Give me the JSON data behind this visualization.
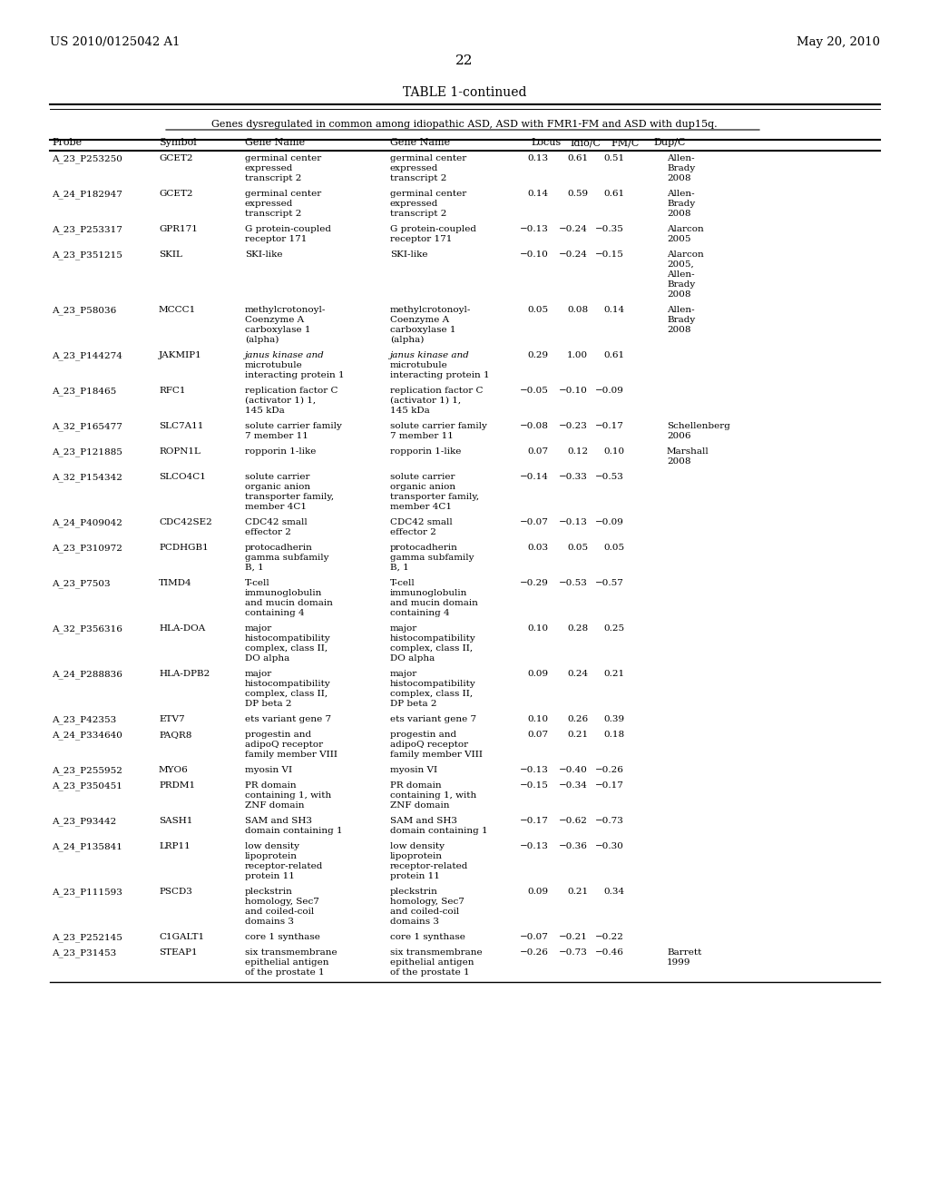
{
  "page_left": "US 2010/0125042 A1",
  "page_right": "May 20, 2010",
  "page_number": "22",
  "table_title": "TABLE 1-continued",
  "subtitle": "Genes dysregulated in common among idiopathic ASD, ASD with FMR1-FM and ASD with dup15q.",
  "col_headers": [
    "Probe",
    "Symbol",
    "Gene Name",
    "Gene Name",
    "Locus",
    "Idio/C",
    "FM/C",
    "Dup/C"
  ],
  "rows": [
    {
      "probe": "A_23_P253250",
      "symbol": "GCET2",
      "gene_name1": "germinal center\nexpressed\ntranscript 2",
      "gene_name2": "germinal center\nexpressed\ntranscript 2",
      "locus": "0.13",
      "idio": "0.61",
      "fmc": "0.51",
      "dupc": "Allen-\nBrady\n2008"
    },
    {
      "probe": "A_24_P182947",
      "symbol": "GCET2",
      "gene_name1": "germinal center\nexpressed\ntranscript 2",
      "gene_name2": "germinal center\nexpressed\ntranscript 2",
      "locus": "0.14",
      "idio": "0.59",
      "fmc": "0.61",
      "dupc": "Allen-\nBrady\n2008"
    },
    {
      "probe": "A_23_P253317",
      "symbol": "GPR171",
      "gene_name1": "G protein-coupled\nreceptor 171",
      "gene_name2": "G protein-coupled\nreceptor 171",
      "locus": "−0.13",
      "idio": "−0.24",
      "fmc": "−0.35",
      "dupc": "Alarcon\n2005"
    },
    {
      "probe": "A_23_P351215",
      "symbol": "SKIL",
      "gene_name1": "SKI-like",
      "gene_name2": "SKI-like",
      "locus": "−0.10",
      "idio": "−0.24",
      "fmc": "−0.15",
      "dupc": "Alarcon\n2005,\nAllen-\nBrady\n2008"
    },
    {
      "probe": "A_23_P58036",
      "symbol": "MCCC1",
      "gene_name1": "methylcrotonoyl-\nCoenzyme A\ncarboxylase 1\n(alpha)",
      "gene_name2": "methylcrotonoyl-\nCoenzyme A\ncarboxylase 1\n(alpha)",
      "locus": "0.05",
      "idio": "0.08",
      "fmc": "0.14",
      "dupc": "Allen-\nBrady\n2008"
    },
    {
      "probe": "A_23_P144274",
      "symbol": "JAKMIP1",
      "gene_name1": "janus kinase and\nmicrotubule\ninteracting protein 1",
      "gene_name2": "janus kinase and\nmicrotubule\ninteracting protein 1",
      "locus": "0.29",
      "idio": "1.00",
      "fmc": "0.61",
      "dupc": ""
    },
    {
      "probe": "A_23_P18465",
      "symbol": "RFC1",
      "gene_name1": "replication factor C\n(activator 1) 1,\n145 kDa",
      "gene_name2": "replication factor C\n(activator 1) 1,\n145 kDa",
      "locus": "−0.05",
      "idio": "−0.10",
      "fmc": "−0.09",
      "dupc": ""
    },
    {
      "probe": "A_32_P165477",
      "symbol": "SLC7A11",
      "gene_name1": "solute carrier family\n7 member 11",
      "gene_name2": "solute carrier family\n7 member 11",
      "locus": "−0.08",
      "idio": "−0.23",
      "fmc": "−0.17",
      "dupc": "Schellenberg\n2006"
    },
    {
      "probe": "A_23_P121885",
      "symbol": "ROPN1L",
      "gene_name1": "ropporin 1-like",
      "gene_name2": "ropporin 1-like",
      "locus": "0.07",
      "idio": "0.12",
      "fmc": "0.10",
      "dupc": "Marshall\n2008"
    },
    {
      "probe": "A_32_P154342",
      "symbol": "SLCO4C1",
      "gene_name1": "solute carrier\norganic anion\ntransporter family,\nmember 4C1",
      "gene_name2": "solute carrier\norganic anion\ntransporter family,\nmember 4C1",
      "locus": "−0.14",
      "idio": "−0.33",
      "fmc": "−0.53",
      "dupc": ""
    },
    {
      "probe": "A_24_P409042",
      "symbol": "CDC42SE2",
      "gene_name1": "CDC42 small\neffector 2",
      "gene_name2": "CDC42 small\neffector 2",
      "locus": "−0.07",
      "idio": "−0.13",
      "fmc": "−0.09",
      "dupc": ""
    },
    {
      "probe": "A_23_P310972",
      "symbol": "PCDHGB1",
      "gene_name1": "protocadherin\ngamma subfamily\nB, 1",
      "gene_name2": "protocadherin\ngamma subfamily\nB, 1",
      "locus": "0.03",
      "idio": "0.05",
      "fmc": "0.05",
      "dupc": ""
    },
    {
      "probe": "A_23_P7503",
      "symbol": "TIMD4",
      "gene_name1": "T-cell\nimmunoglobulin\nand mucin domain\ncontaining 4",
      "gene_name2": "T-cell\nimmunoglobulin\nand mucin domain\ncontaining 4",
      "locus": "−0.29",
      "idio": "−0.53",
      "fmc": "−0.57",
      "dupc": ""
    },
    {
      "probe": "A_32_P356316",
      "symbol": "HLA-DOA",
      "gene_name1": "major\nhistocompatibility\ncomplex, class II,\nDO alpha",
      "gene_name2": "major\nhistocompatibility\ncomplex, class II,\nDO alpha",
      "locus": "0.10",
      "idio": "0.28",
      "fmc": "0.25",
      "dupc": ""
    },
    {
      "probe": "A_24_P288836",
      "symbol": "HLA-DPB2",
      "gene_name1": "major\nhistocompatibility\ncomplex, class II,\nDP beta 2",
      "gene_name2": "major\nhistocompatibility\ncomplex, class II,\nDP beta 2",
      "locus": "0.09",
      "idio": "0.24",
      "fmc": "0.21",
      "dupc": ""
    },
    {
      "probe": "A_23_P42353",
      "symbol": "ETV7",
      "gene_name1": "ets variant gene 7",
      "gene_name2": "ets variant gene 7",
      "locus": "0.10",
      "idio": "0.26",
      "fmc": "0.39",
      "dupc": ""
    },
    {
      "probe": "A_24_P334640",
      "symbol": "PAQR8",
      "gene_name1": "progestin and\nadipoQ receptor\nfamily member VIII",
      "gene_name2": "progestin and\nadipoQ receptor\nfamily member VIII",
      "locus": "0.07",
      "idio": "0.21",
      "fmc": "0.18",
      "dupc": ""
    },
    {
      "probe": "A_23_P255952",
      "symbol": "MYO6",
      "gene_name1": "myosin VI",
      "gene_name2": "myosin VI",
      "locus": "−0.13",
      "idio": "−0.40",
      "fmc": "−0.26",
      "dupc": ""
    },
    {
      "probe": "A_23_P350451",
      "symbol": "PRDM1",
      "gene_name1": "PR domain\ncontaining 1, with\nZNF domain",
      "gene_name2": "PR domain\ncontaining 1, with\nZNF domain",
      "locus": "−0.15",
      "idio": "−0.34",
      "fmc": "−0.17",
      "dupc": ""
    },
    {
      "probe": "A_23_P93442",
      "symbol": "SASH1",
      "gene_name1": "SAM and SH3\ndomain containing 1",
      "gene_name2": "SAM and SH3\ndomain containing 1",
      "locus": "−0.17",
      "idio": "−0.62",
      "fmc": "−0.73",
      "dupc": ""
    },
    {
      "probe": "A_24_P135841",
      "symbol": "LRP11",
      "gene_name1": "low density\nlipoprotein\nreceptor-related\nprotein 11",
      "gene_name2": "low density\nlipoprotein\nreceptor-related\nprotein 11",
      "locus": "−0.13",
      "idio": "−0.36",
      "fmc": "−0.30",
      "dupc": ""
    },
    {
      "probe": "A_23_P111593",
      "symbol": "PSCD3",
      "gene_name1": "pleckstrin\nhomology, Sec7\nand coiled-coil\ndomains 3",
      "gene_name2": "pleckstrin\nhomology, Sec7\nand coiled-coil\ndomains 3",
      "locus": "0.09",
      "idio": "0.21",
      "fmc": "0.34",
      "dupc": ""
    },
    {
      "probe": "A_23_P252145",
      "symbol": "C1GALT1",
      "gene_name1": "core 1 synthase",
      "gene_name2": "core 1 synthase",
      "locus": "−0.07",
      "idio": "−0.21",
      "fmc": "−0.22",
      "dupc": ""
    },
    {
      "probe": "A_23_P31453",
      "symbol": "STEAP1",
      "gene_name1": "six transmembrane\nepithelial antigen\nof the prostate 1",
      "gene_name2": "six transmembrane\nepithelial antigen\nof the prostate 1",
      "locus": "−0.26",
      "idio": "−0.73",
      "fmc": "−0.46",
      "dupc": "Barrett\n1999"
    }
  ],
  "bg_color": "#ffffff",
  "text_color": "#000000",
  "font_size": 7.5,
  "header_font_size": 8.0,
  "title_font_size": 10.0
}
